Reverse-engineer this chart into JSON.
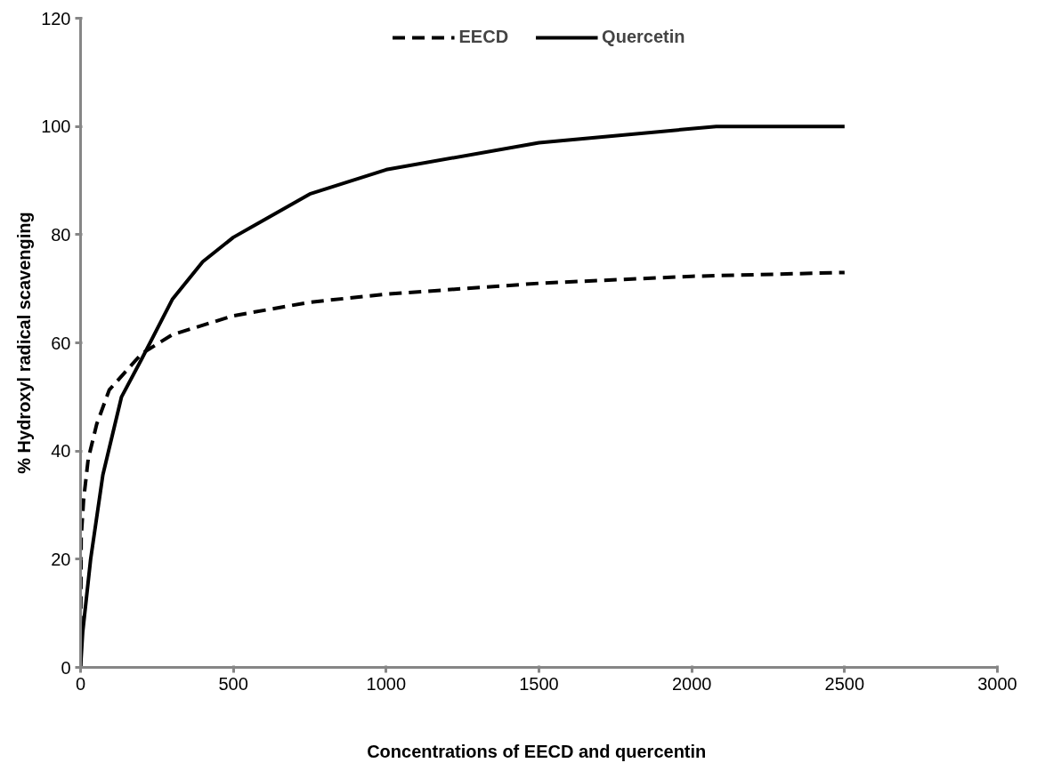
{
  "chart_data": {
    "type": "line",
    "xlabel": "Concentrations of EECD and  quercentin",
    "ylabel": "% Hydroxyl radical scavenging",
    "xlim": [
      0,
      3000
    ],
    "xticks": [
      0,
      500,
      1000,
      1500,
      2000,
      2500,
      3000
    ],
    "ylim": [
      0,
      120
    ],
    "yticks": [
      0,
      20,
      40,
      60,
      80,
      100,
      120
    ],
    "grid": false,
    "legend": "top",
    "marker": "none",
    "series": [
      {
        "name": "EECD",
        "color": "#000000",
        "line_style": "dashed",
        "x": [
          0,
          2,
          10,
          25,
          53,
          94,
          200,
          300,
          500,
          750,
          1000,
          1500,
          2000,
          2500
        ],
        "values": [
          0,
          24,
          31,
          38.5,
          45,
          51.3,
          58,
          61.5,
          65,
          67.5,
          69,
          71,
          72.3,
          73
        ]
      },
      {
        "name": "Quercetin",
        "color": "#000000",
        "line_style": "solid",
        "x": [
          0,
          7,
          33,
          73,
          134,
          200,
          300,
          400,
          500,
          750,
          1000,
          1500,
          2080,
          2500
        ],
        "values": [
          0,
          6.5,
          20,
          35.6,
          50,
          57,
          68,
          75,
          79.5,
          87.5,
          92,
          97,
          100,
          100
        ]
      }
    ]
  }
}
